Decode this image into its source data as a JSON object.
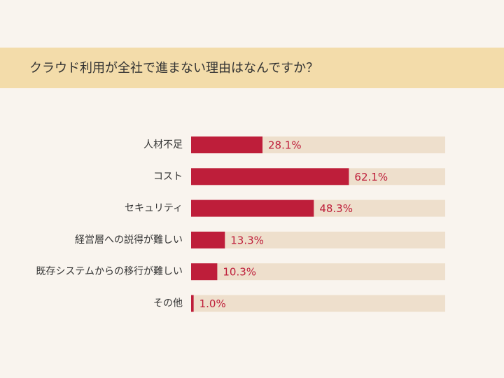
{
  "chart_data": {
    "type": "bar",
    "orientation": "horizontal",
    "title": "クラウド利用が全社で進まない理由はなんですか？",
    "categories": [
      "人材不足",
      "コスト",
      "セキュリティ",
      "経営層への説得が難しい",
      "既存システムからの移行が難しい",
      "その他"
    ],
    "values": [
      28.1,
      62.1,
      48.3,
      13.3,
      10.3,
      1.0
    ],
    "value_labels": [
      "28.1%",
      "62.1%",
      "48.3%",
      "13.3%",
      "10.3%",
      "1.0%"
    ],
    "color": "#be1e3a",
    "track_color": "#eedfcc",
    "xlim": [
      0,
      100
    ]
  }
}
